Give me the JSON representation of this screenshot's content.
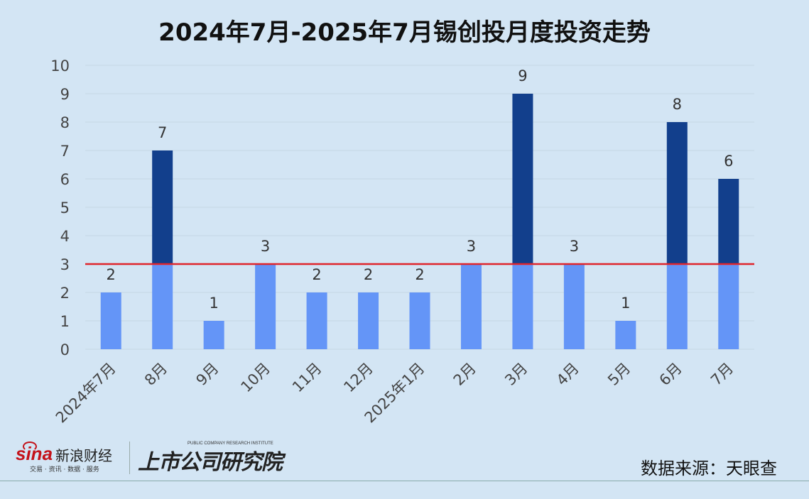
{
  "chart_data": {
    "type": "bar",
    "title": "2024年7月-2025年7月锡创投月度投资走势",
    "categories": [
      "2024年7月",
      "8月",
      "9月",
      "10月",
      "11月",
      "12月",
      "2025年1月",
      "2月",
      "3月",
      "4月",
      "5月",
      "6月",
      "7月"
    ],
    "values": [
      2,
      7,
      1,
      3,
      2,
      2,
      2,
      3,
      9,
      3,
      1,
      8,
      6
    ],
    "ylim": [
      0,
      10
    ],
    "yticks": [
      "0",
      "1",
      "2",
      "3",
      "4",
      "5",
      "6",
      "7",
      "8",
      "9",
      "10"
    ],
    "reference_line": 3,
    "grid": true,
    "colors": {
      "below_line": "#6495f7",
      "above_line": "#123f8c",
      "reference_line": "#e0252b"
    }
  },
  "footer": {
    "sina_brand": "sina",
    "sina_name": "新浪财经",
    "sina_tagline": "交易 · 资讯 · 数据 · 服务",
    "research_name": "上市公司研究院",
    "research_en": "PUBLIC COMPANY RESEARCH INSTITUTE",
    "source": "数据来源：天眼查"
  }
}
